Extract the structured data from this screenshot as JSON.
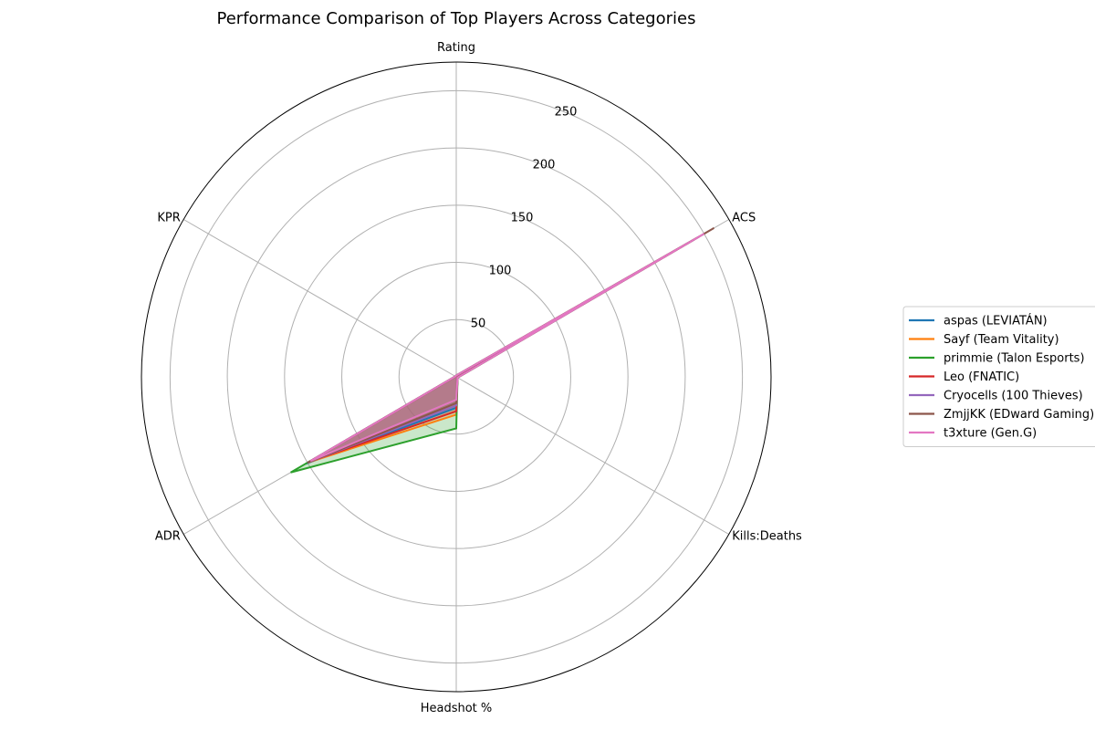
{
  "chart_data": {
    "type": "radar",
    "title": "Performance Comparison of Top Players Across Categories",
    "categories": [
      "Rating",
      "ACS",
      "Kills:Deaths",
      "Headshot %",
      "ADR",
      "KPR"
    ],
    "rticks": [
      50,
      100,
      150,
      200,
      250
    ],
    "rlim": [
      0,
      275
    ],
    "grid": true,
    "legend_position": "right",
    "series": [
      {
        "name": "aspas (LEVIATÁN)",
        "color": "#1f77b4",
        "values": [
          1.2,
          245,
          1.3,
          27,
          152,
          0.9
        ]
      },
      {
        "name": "Sayf (Team Vitality)",
        "color": "#ff7f0e",
        "values": [
          1.15,
          242,
          1.25,
          33,
          150,
          0.85
        ]
      },
      {
        "name": "primmie (Talon Esports)",
        "color": "#2ca02c",
        "values": [
          1.2,
          240,
          1.35,
          45,
          167,
          0.9
        ]
      },
      {
        "name": "Leo (FNATIC)",
        "color": "#d62728",
        "values": [
          1.1,
          238,
          1.2,
          30,
          148,
          0.8
        ]
      },
      {
        "name": "Cryocells (100 Thieves)",
        "color": "#9467bd",
        "values": [
          1.15,
          243,
          1.25,
          25,
          150,
          0.85
        ]
      },
      {
        "name": "ZmjjKK (EDward Gaming)",
        "color": "#8c564b",
        "values": [
          1.3,
          260,
          1.4,
          23,
          150,
          0.95
        ]
      },
      {
        "name": "t3xture (Gen.G)",
        "color": "#e377c2",
        "values": [
          1.2,
          250,
          1.3,
          20,
          147,
          0.9
        ]
      }
    ]
  }
}
